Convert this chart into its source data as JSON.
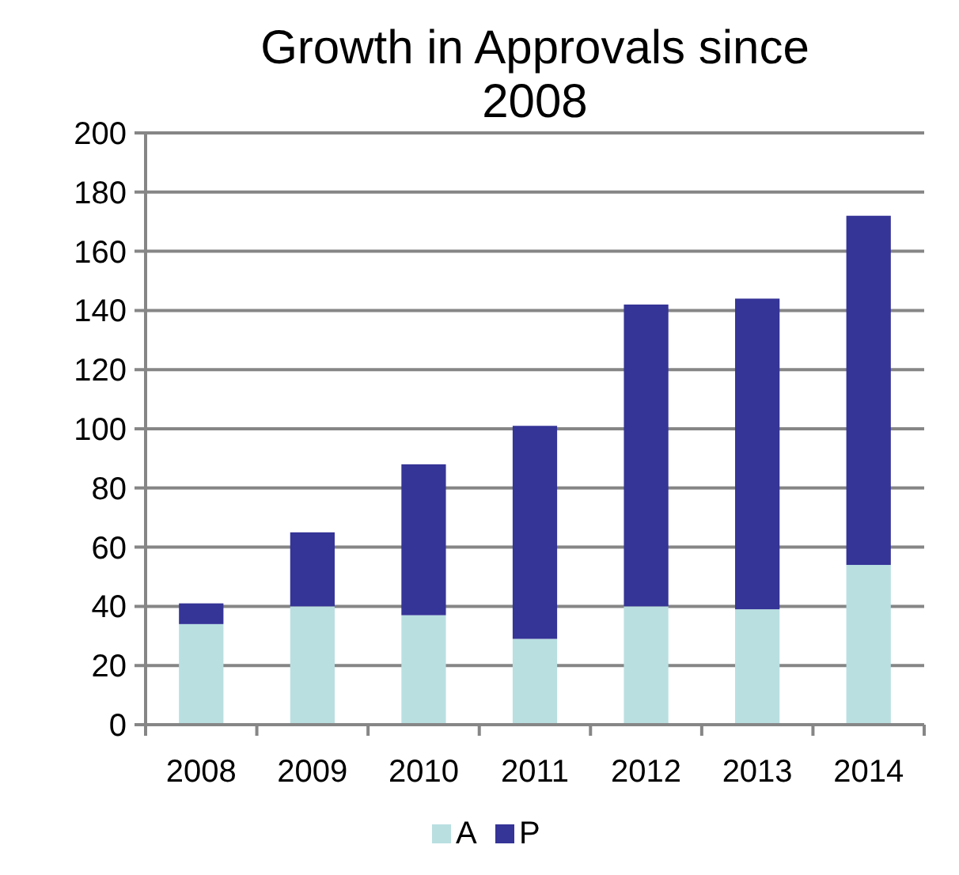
{
  "chart_data": {
    "type": "bar",
    "title": "Growth in Approvals since 2008",
    "categories": [
      "2008",
      "2009",
      "2010",
      "2011",
      "2012",
      "2013",
      "2014"
    ],
    "stacked": true,
    "series": [
      {
        "name": "A",
        "color": "#b9dfe1",
        "values": [
          34,
          40,
          37,
          29,
          40,
          39,
          54
        ]
      },
      {
        "name": "P",
        "color": "#353497",
        "values": [
          7,
          25,
          51,
          72,
          102,
          105,
          118
        ]
      }
    ],
    "ylim": [
      0,
      200
    ],
    "yticks": [
      0,
      20,
      40,
      60,
      80,
      100,
      120,
      140,
      160,
      180,
      200
    ],
    "grid": "y",
    "legend": "bottom"
  }
}
